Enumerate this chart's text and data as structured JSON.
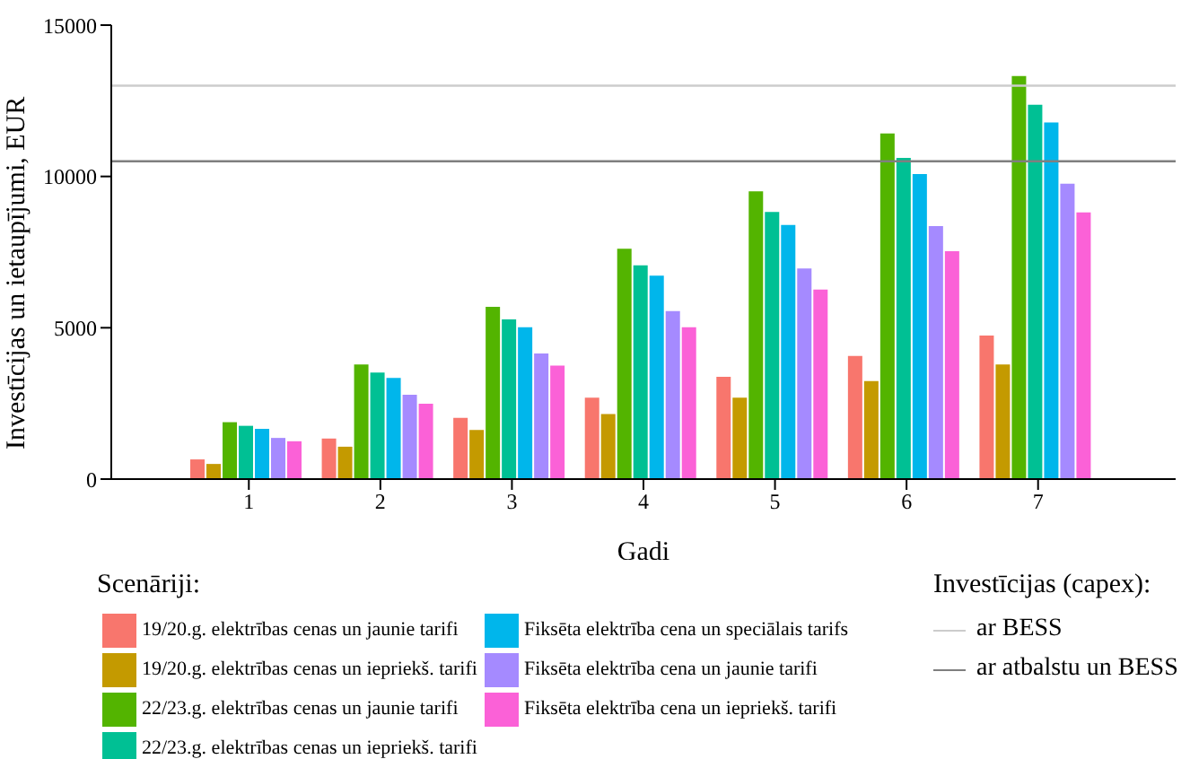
{
  "chart_data": {
    "type": "bar",
    "xlabel": "Gadi",
    "ylabel": "Investīcijas un ietaupījumi, EUR",
    "legend_title": "Scenāriji:",
    "annotations": [
      "Investīcijas (capex):"
    ],
    "categories": [
      "1",
      "2",
      "3",
      "4",
      "5",
      "6",
      "7"
    ],
    "ylim": [
      0,
      15000
    ],
    "yticks": [
      0,
      5000,
      10000,
      15000
    ],
    "grid": false,
    "legend": "bottom",
    "series": [
      {
        "name": "19/20.g. elektrības cenas un jaunie tarifi",
        "color": "#f8766d",
        "values": [
          650,
          1340,
          2020,
          2690,
          3380,
          4070,
          4740
        ]
      },
      {
        "name": "19/20.g. elektrības cenas un iepriekš. tarifi",
        "color": "#c49a00",
        "values": [
          500,
          1070,
          1620,
          2150,
          2690,
          3240,
          3790
        ]
      },
      {
        "name": "22/23.g. elektrības cenas un jaunie tarifi",
        "color": "#53b400",
        "values": [
          1880,
          3790,
          5690,
          7610,
          9510,
          11420,
          13320
        ]
      },
      {
        "name": "22/23.g. elektrības cenas un iepriekš. tarifi",
        "color": "#00c094",
        "values": [
          1760,
          3520,
          5280,
          7060,
          8830,
          10610,
          12370
        ]
      },
      {
        "name": "Fiksēta elektrība cena un speciālais tarifs",
        "color": "#00b6eb",
        "values": [
          1660,
          3340,
          5020,
          6720,
          8400,
          10080,
          11780
        ]
      },
      {
        "name": "Fiksēta elektrība cena un jaunie tarifi",
        "color": "#a58aff",
        "values": [
          1360,
          2790,
          4150,
          5550,
          6960,
          8360,
          9760
        ]
      },
      {
        "name": "Fiksēta elektrība cena un iepriekš. tarifi",
        "color": "#fb61d7",
        "values": [
          1250,
          2490,
          3750,
          5020,
          6260,
          7530,
          8810
        ]
      }
    ],
    "ref_lines": [
      {
        "axis": "y",
        "value": 13000,
        "label": "ar BESS",
        "color": "#cccccc"
      },
      {
        "axis": "y",
        "value": 10500,
        "label": "ar atbalstu un BESS",
        "color": "#7f7f7f"
      }
    ]
  }
}
